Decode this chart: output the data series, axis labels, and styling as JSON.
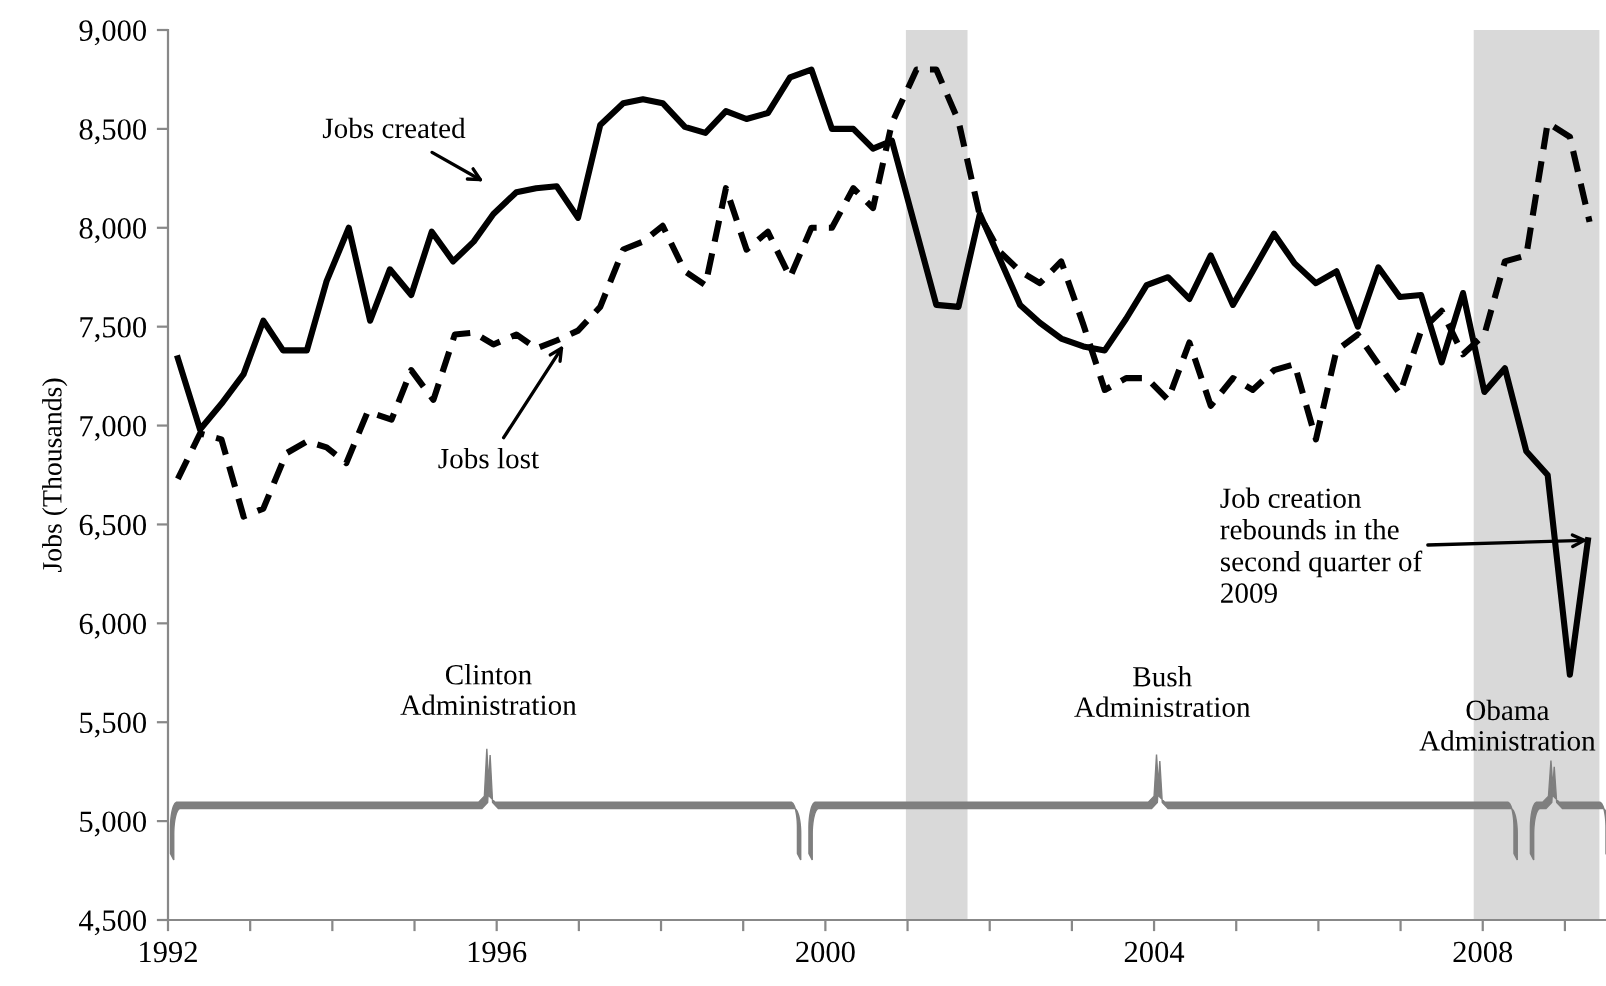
{
  "chart_data": {
    "type": "line",
    "ylabel": "Jobs (Thousands)",
    "xlim": [
      1992,
      2009.5
    ],
    "xticks": [
      {
        "value": 1992,
        "label": "1992"
      },
      {
        "value": 1993,
        "label": null
      },
      {
        "value": 1994,
        "label": null
      },
      {
        "value": 1995,
        "label": null
      },
      {
        "value": 1996,
        "label": "1996"
      },
      {
        "value": 1997,
        "label": null
      },
      {
        "value": 1998,
        "label": null
      },
      {
        "value": 1999,
        "label": null
      },
      {
        "value": 2000,
        "label": "2000"
      },
      {
        "value": 2001,
        "label": null
      },
      {
        "value": 2002,
        "label": null
      },
      {
        "value": 2003,
        "label": null
      },
      {
        "value": 2004,
        "label": "2004"
      },
      {
        "value": 2005,
        "label": null
      },
      {
        "value": 2006,
        "label": null
      },
      {
        "value": 2007,
        "label": null
      },
      {
        "value": 2008,
        "label": "2008"
      },
      {
        "value": 2009,
        "label": null
      }
    ],
    "ylim": [
      4500,
      9000
    ],
    "yticks": [
      {
        "value": 4500,
        "label": "4,500"
      },
      {
        "value": 5000,
        "label": "5,000"
      },
      {
        "value": 5500,
        "label": "5,500"
      },
      {
        "value": 6000,
        "label": "6,000"
      },
      {
        "value": 6500,
        "label": "6,500"
      },
      {
        "value": 7000,
        "label": "7,000"
      },
      {
        "value": 7500,
        "label": "7,500"
      },
      {
        "value": 8000,
        "label": "8,000"
      },
      {
        "value": 8500,
        "label": "8,500"
      },
      {
        "value": 9000,
        "label": "9,000"
      }
    ],
    "grid": false,
    "legend": false,
    "series": [
      {
        "name": "Jobs created",
        "color": "#000000",
        "line_style": "solid",
        "x": [
          1992.12,
          1992.39,
          1992.65,
          1992.92,
          1993.16,
          1993.4,
          1993.69,
          1993.93,
          1994.2,
          1994.46,
          1994.7,
          1994.96,
          1995.21,
          1995.47,
          1995.72,
          1995.96,
          1996.24,
          1996.48,
          1996.73,
          1996.99,
          1997.26,
          1997.54,
          1997.78,
          1998.02,
          1998.29,
          1998.54,
          1998.79,
          1999.04,
          1999.3,
          1999.57,
          1999.83,
          2000.08,
          2000.34,
          2000.58,
          2000.81,
          2001.35,
          2001.62,
          2001.88,
          2002.37,
          2002.61,
          2002.87,
          2003.14,
          2003.4,
          2003.66,
          2003.91,
          2004.17,
          2004.43,
          2004.69,
          2004.96,
          2005.2,
          2005.46,
          2005.71,
          2005.97,
          2006.22,
          2006.48,
          2006.73,
          2006.99,
          2007.25,
          2007.5,
          2007.76,
          2008.02,
          2008.27,
          2008.53,
          2008.79,
          2009.06,
          2009.28
        ],
        "values": [
          7340,
          6980,
          7110,
          7260,
          7530,
          7380,
          7380,
          7730,
          8000,
          7530,
          7790,
          7660,
          7980,
          7830,
          7930,
          8070,
          8180,
          8200,
          8210,
          8050,
          8520,
          8630,
          8650,
          8630,
          8510,
          8480,
          8590,
          8550,
          8580,
          8760,
          8800,
          8500,
          8500,
          8400,
          8440,
          7610,
          7600,
          8070,
          7610,
          7520,
          7440,
          7400,
          7380,
          7540,
          7710,
          7750,
          7640,
          7860,
          7610,
          7780,
          7970,
          7820,
          7720,
          7780,
          7500,
          7800,
          7650,
          7660,
          7320,
          7670,
          7170,
          7290,
          6870,
          6750,
          5740,
          6420
        ]
      },
      {
        "name": "Jobs lost",
        "color": "#000000",
        "line_style": "dashed",
        "x": [
          1992.12,
          1992.39,
          1992.65,
          1992.92,
          1993.16,
          1993.44,
          1993.69,
          1993.93,
          1994.17,
          1994.43,
          1994.72,
          1994.96,
          1995.23,
          1995.49,
          1995.72,
          1995.96,
          1996.24,
          1996.48,
          1996.73,
          1996.99,
          1997.26,
          1997.54,
          1997.78,
          1998.02,
          1998.29,
          1998.54,
          1998.79,
          1999.04,
          1999.3,
          1999.57,
          1999.83,
          2000.08,
          2000.34,
          2000.58,
          2000.81,
          2001.11,
          2001.35,
          2001.62,
          2001.88,
          2002.12,
          2002.37,
          2002.61,
          2002.87,
          2003.14,
          2003.4,
          2003.66,
          2003.91,
          2004.17,
          2004.43,
          2004.69,
          2004.96,
          2005.2,
          2005.46,
          2005.71,
          2005.97,
          2006.22,
          2006.48,
          2006.73,
          2006.99,
          2007.25,
          2007.5,
          2007.76,
          2008.02,
          2008.27,
          2008.53,
          2008.79,
          2009.06,
          2009.3
        ],
        "values": [
          6730,
          6960,
          6930,
          6540,
          6580,
          6860,
          6920,
          6890,
          6810,
          7070,
          7030,
          7280,
          7130,
          7460,
          7470,
          7410,
          7460,
          7390,
          7430,
          7480,
          7600,
          7890,
          7930,
          8010,
          7780,
          7710,
          8200,
          7890,
          7980,
          7750,
          8000,
          8000,
          8200,
          8100,
          8530,
          8800,
          8800,
          8540,
          8060,
          7880,
          7780,
          7720,
          7830,
          7510,
          7180,
          7240,
          7240,
          7130,
          7420,
          7100,
          7240,
          7180,
          7280,
          7310,
          6930,
          7380,
          7460,
          7310,
          7160,
          7480,
          7580,
          7360,
          7460,
          7830,
          7860,
          8530,
          8460,
          8030
        ]
      }
    ],
    "bands": [
      {
        "axis": "x",
        "from": 2000.98,
        "to": 2001.73,
        "color": "#d9d9d9"
      },
      {
        "axis": "x",
        "from": 2007.89,
        "to": 2009.42,
        "color": "#d9d9d9"
      }
    ],
    "annotations": [
      {
        "text": "Job creation\nrebounds in the\nsecond quarter of\n2009",
        "x": 2009.28,
        "y": 6420
      },
      "Clinton\nAdministration",
      "Bush\nAdministration",
      "Obama\nAdministration"
    ]
  }
}
